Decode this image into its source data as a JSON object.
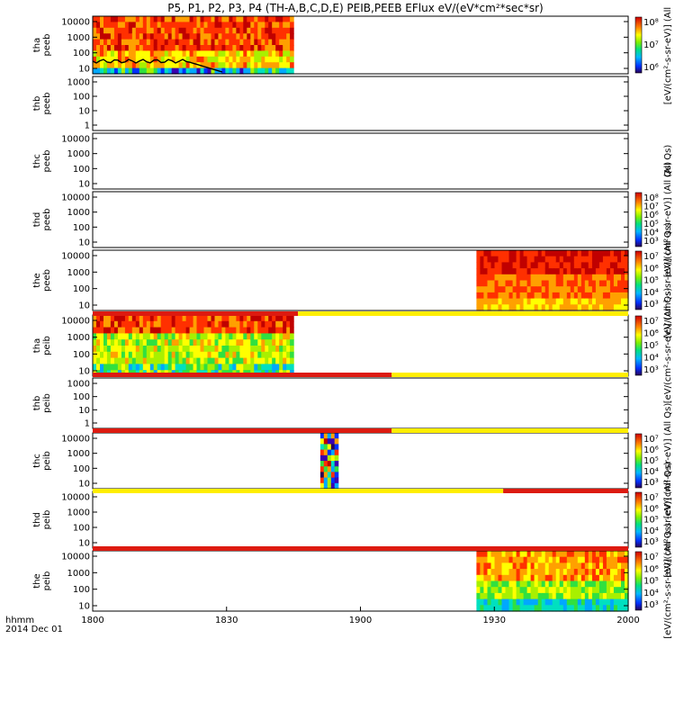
{
  "title": "P5, P1, P2, P3, P4 (TH-A,B,C,D,E) PEIB,PEEB EFlux eV/(eV*cm²*sec*sr)",
  "colors": {
    "red": "#dd1a10",
    "yellow": "#ffee00",
    "dark_red": "#a80000",
    "black": "#000000"
  },
  "colormap": [
    "#2a0054",
    "#3a00b0",
    "#0030ff",
    "#00a8ff",
    "#00e0c0",
    "#30e040",
    "#a8f000",
    "#ffff00",
    "#ffa000",
    "#ff3000",
    "#c00000"
  ],
  "chart_data": {
    "type": "heatmap",
    "x_axis": {
      "label_line1": "hhmm",
      "label_line2": "2014 Dec 01",
      "range": [
        "1800",
        "2000"
      ],
      "ticks": [
        "1800",
        "1830",
        "1900",
        "1930",
        "2000"
      ]
    },
    "panels": [
      {
        "label_line1": "tha",
        "label_line2": "peeb",
        "y_ticks": [
          "10000",
          "1000",
          "100",
          "10"
        ],
        "log_scale": true,
        "data_coverage": {
          "start": "1800",
          "end": "1845"
        },
        "has_overlay_line": true,
        "colorbar": {
          "visible": true,
          "ticks": [
            "10⁸",
            "10⁷",
            "10⁶"
          ],
          "label": "[eV/(cm²-s-sr-eV)] (All"
        }
      },
      {
        "label_line1": "thb",
        "label_line2": "peeb",
        "y_ticks": [
          "1000",
          "100",
          "10",
          "1"
        ],
        "log_scale": true,
        "data_coverage": null,
        "has_overlay_line": false,
        "colorbar": {
          "visible": false
        }
      },
      {
        "label_line1": "thc",
        "label_line2": "peeb",
        "y_ticks": [
          "10000",
          "1000",
          "100",
          "10"
        ],
        "log_scale": true,
        "data_coverage": null,
        "has_overlay_line": false,
        "colorbar": {
          "visible": false,
          "label": "(All Qs)"
        }
      },
      {
        "label_line1": "thd",
        "label_line2": "peeb",
        "y_ticks": [
          "10000",
          "1000",
          "100",
          "10"
        ],
        "log_scale": true,
        "data_coverage": null,
        "has_overlay_line": false,
        "colorbar": {
          "visible": true,
          "ticks": [
            "10⁸",
            "10⁷",
            "10⁶",
            "10⁵",
            "10⁴",
            "10³"
          ],
          "label": "[eV/(cm²-s-sr-eV)] (All Qs)"
        }
      },
      {
        "label_line1": "the",
        "label_line2": "peeb",
        "y_ticks": [
          "10000",
          "1000",
          "100",
          "10"
        ],
        "log_scale": true,
        "data_coverage": {
          "start": "1926",
          "end": "2000"
        },
        "has_overlay_line": false,
        "colorbar": {
          "visible": true,
          "ticks": [
            "10⁷",
            "10⁶",
            "10⁵",
            "10⁴",
            "10³"
          ],
          "label": "[eV/(cm²-s-sr-eV)] (All Qs)"
        }
      },
      {
        "label_line1": "tha",
        "label_line2": "peib",
        "y_ticks": [
          "10000",
          "1000",
          "100",
          "10"
        ],
        "log_scale": true,
        "data_coverage": {
          "start": "1800",
          "end": "1845"
        },
        "has_overlay_line": false,
        "colorbar": {
          "visible": true,
          "ticks": [
            "10⁷",
            "10⁶",
            "10⁵",
            "10⁴",
            "10³"
          ],
          "label": "[eV/(cm²-s-sr-eV)] (All Qs)"
        }
      },
      {
        "label_line1": "thb",
        "label_line2": "peib",
        "y_ticks": [
          "1000",
          "100",
          "10",
          "1"
        ],
        "log_scale": true,
        "data_coverage": null,
        "has_overlay_line": false,
        "colorbar": {
          "visible": false
        }
      },
      {
        "label_line1": "thc",
        "label_line2": "peib",
        "y_ticks": [
          "10000",
          "1000",
          "100",
          "10"
        ],
        "log_scale": true,
        "data_coverage": {
          "start": "1851",
          "end": "1855"
        },
        "has_overlay_line": false,
        "colorbar": {
          "visible": true,
          "ticks": [
            "10⁷",
            "10⁶",
            "10⁵",
            "10⁴",
            "10³"
          ],
          "label": "[eV/(cm²-s-sr-eV)] (All Qs)"
        }
      },
      {
        "label_line1": "thd",
        "label_line2": "peib",
        "y_ticks": [
          "10000",
          "1000",
          "100",
          "10"
        ],
        "log_scale": true,
        "data_coverage": null,
        "has_overlay_line": false,
        "colorbar": {
          "visible": true,
          "ticks": [
            "10⁷",
            "10⁶",
            "10⁵",
            "10⁴",
            "10³"
          ],
          "label": "[eV/(cm²-s-sr-eV)] (All Qs)"
        }
      },
      {
        "label_line1": "the",
        "label_line2": "peib",
        "y_ticks": [
          "10000",
          "1000",
          "100",
          "10"
        ],
        "log_scale": true,
        "data_coverage": {
          "start": "1926",
          "end": "2000"
        },
        "has_overlay_line": false,
        "colorbar": {
          "visible": true,
          "ticks": [
            "10⁷",
            "10⁶",
            "10⁵",
            "10⁴",
            "10³"
          ],
          "label": "[eV/(cm²-s-sr-eV)] (All Qs)"
        }
      }
    ],
    "mode_bars": [
      {
        "segments": [
          {
            "start": "1800",
            "end": "1846",
            "color": "red"
          },
          {
            "start": "1846",
            "end": "2000",
            "color": "yellow"
          }
        ]
      },
      {
        "segments": [
          {
            "start": "1800",
            "end": "1907",
            "color": "red"
          },
          {
            "start": "1907",
            "end": "2000",
            "color": "yellow"
          }
        ]
      },
      {
        "segments": [
          {
            "start": "1800",
            "end": "1907",
            "color": "red"
          },
          {
            "start": "1907",
            "end": "2000",
            "color": "yellow"
          }
        ]
      },
      {
        "segments": [
          {
            "start": "1800",
            "end": "1932",
            "color": "yellow"
          },
          {
            "start": "1932",
            "end": "2000",
            "color": "red"
          }
        ]
      },
      {
        "segments": [
          {
            "start": "1800",
            "end": "2000",
            "color": "red"
          }
        ]
      }
    ]
  }
}
